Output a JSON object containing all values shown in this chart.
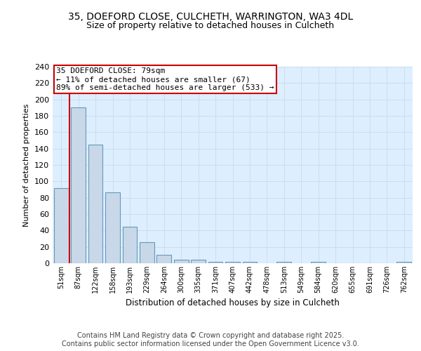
{
  "title1": "35, DOEFORD CLOSE, CULCHETH, WARRINGTON, WA3 4DL",
  "title2": "Size of property relative to detached houses in Culcheth",
  "xlabel": "Distribution of detached houses by size in Culcheth",
  "ylabel": "Number of detached properties",
  "categories": [
    "51sqm",
    "87sqm",
    "122sqm",
    "158sqm",
    "193sqm",
    "229sqm",
    "264sqm",
    "300sqm",
    "335sqm",
    "371sqm",
    "407sqm",
    "442sqm",
    "478sqm",
    "513sqm",
    "549sqm",
    "584sqm",
    "620sqm",
    "655sqm",
    "691sqm",
    "726sqm",
    "762sqm"
  ],
  "values": [
    92,
    190,
    145,
    87,
    45,
    26,
    10,
    4,
    4,
    2,
    2,
    2,
    0,
    2,
    0,
    2,
    0,
    0,
    0,
    0,
    2
  ],
  "bar_color": "#c8d8e8",
  "bar_edge_color": "#6699bb",
  "annotation_box_color": "#ffffff",
  "annotation_border_color": "#cc0000",
  "annotation_text": "35 DOEFORD CLOSE: 79sqm\n← 11% of detached houses are smaller (67)\n89% of semi-detached houses are larger (533) →",
  "marker_color": "#cc0000",
  "ylim": [
    0,
    240
  ],
  "yticks": [
    0,
    20,
    40,
    60,
    80,
    100,
    120,
    140,
    160,
    180,
    200,
    220,
    240
  ],
  "grid_color": "#ccddee",
  "background_color": "#ddeeff",
  "footer": "Contains HM Land Registry data © Crown copyright and database right 2025.\nContains public sector information licensed under the Open Government Licence v3.0.",
  "title_fontsize": 10,
  "subtitle_fontsize": 9,
  "footer_fontsize": 7,
  "annot_fontsize": 8
}
